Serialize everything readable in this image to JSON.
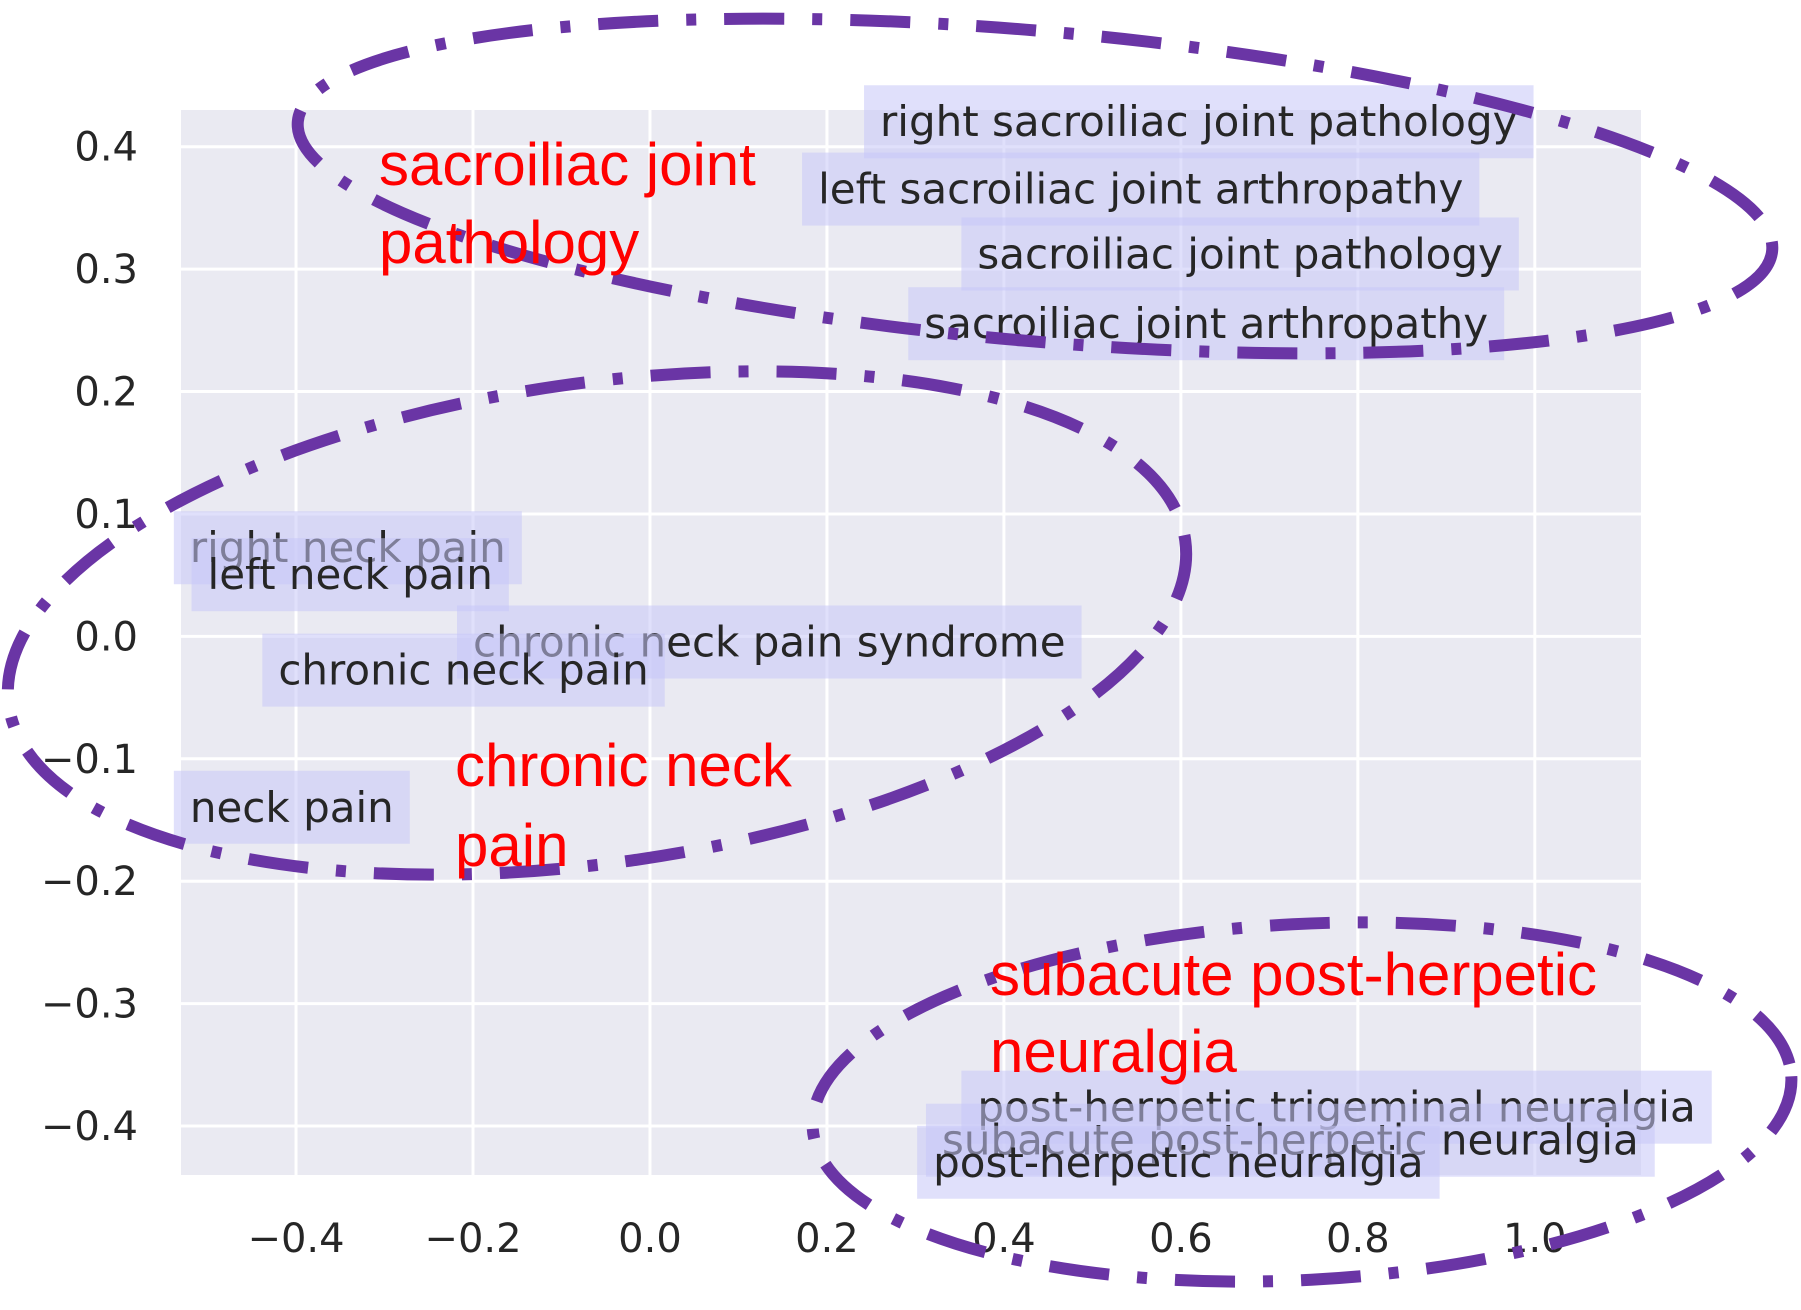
{
  "colors": {
    "plot_background": "#eaeaf2",
    "grid": "#ffffff",
    "label_box": "#c7c7f7",
    "text": "#262626",
    "cluster_label": "#ff0000",
    "ellipse": "#6a35a5"
  },
  "chart_data": {
    "type": "scatter",
    "title": "",
    "xlabel": "",
    "ylabel": "",
    "xlim": [
      -0.53,
      1.12
    ],
    "ylim": [
      -0.44,
      0.43
    ],
    "grid": true,
    "xticks": [
      -0.4,
      -0.2,
      0.0,
      0.2,
      0.4,
      0.6,
      0.8,
      1.0
    ],
    "yticks": [
      0.4,
      0.3,
      0.2,
      0.1,
      0.0,
      -0.1,
      -0.2,
      -0.3,
      -0.4
    ],
    "xtick_labels": [
      "−0.4",
      "−0.2",
      "0.0",
      "0.2",
      "0.4",
      "0.6",
      "0.8",
      "1.0"
    ],
    "ytick_labels": [
      "0.4",
      "0.3",
      "0.2",
      "0.1",
      "0.0",
      "−0.1",
      "−0.2",
      "−0.3",
      "−0.4"
    ],
    "points": [
      {
        "label": "right sacroiliac joint pathology",
        "x": 0.26,
        "y": 0.42
      },
      {
        "label": "left sacroiliac joint arthropathy",
        "x": 0.19,
        "y": 0.365
      },
      {
        "label": "sacroiliac joint pathology",
        "x": 0.37,
        "y": 0.312
      },
      {
        "label": "sacroiliac joint arthropathy",
        "x": 0.31,
        "y": 0.255
      },
      {
        "label": "right neck pain",
        "x": -0.52,
        "y": 0.072
      },
      {
        "label": "left neck pain",
        "x": -0.5,
        "y": 0.05
      },
      {
        "label": "chronic neck pain syndrome",
        "x": -0.2,
        "y": -0.005
      },
      {
        "label": "chronic neck pain",
        "x": -0.42,
        "y": -0.028
      },
      {
        "label": "neck pain",
        "x": -0.52,
        "y": -0.14
      },
      {
        "label": "post-herpetic trigeminal neuralgia",
        "x": 0.37,
        "y": -0.385
      },
      {
        "label": "subacute post-herpetic neuralgia",
        "x": 0.33,
        "y": -0.412
      },
      {
        "label": "post-herpetic neuralgia",
        "x": 0.32,
        "y": -0.43
      }
    ],
    "annotations": [
      {
        "lines": [
          "sacroiliac joint",
          "pathology"
        ]
      },
      {
        "lines": [
          "chronic neck",
          "pain"
        ]
      },
      {
        "lines": [
          "subacute post-herpetic",
          "neuralgia"
        ]
      }
    ]
  }
}
